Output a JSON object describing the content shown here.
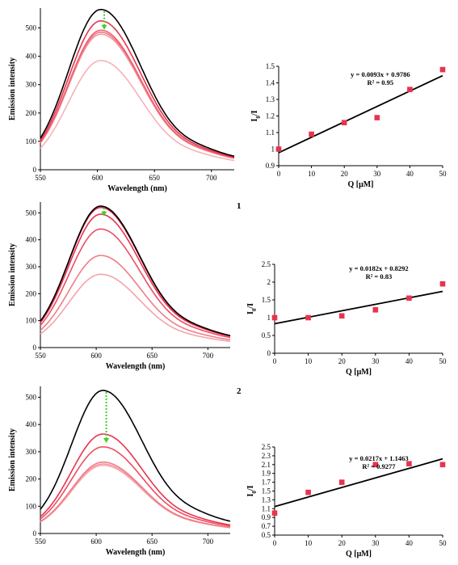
{
  "chart_data": [
    {
      "type": "line",
      "xlabel": "Wavelength (nm)",
      "ylabel": "Emission intensity",
      "xlim": [
        550,
        720
      ],
      "ylim": [
        0,
        570
      ],
      "xticks": [
        550,
        600,
        650,
        700
      ],
      "yticks": [
        0,
        100,
        200,
        300,
        400,
        500
      ],
      "peak_x": 603,
      "series": [
        {
          "color": "#000000",
          "peak": 565
        },
        {
          "color": "#e8334f",
          "peak": 525
        },
        {
          "color": "#ef6070",
          "peak": 492
        },
        {
          "color": "#f07c86",
          "peak": 485
        },
        {
          "color": "#f39aa2",
          "peak": 478
        },
        {
          "color": "#f6b2b8",
          "peak": 385
        }
      ],
      "arrow_color": "#3fd12f"
    },
    {
      "type": "scatter",
      "xlabel": "Q [μM]",
      "ylabel": "I0/I",
      "xlim": [
        0,
        50
      ],
      "ylim": [
        0.9,
        1.5
      ],
      "xticks": [
        0,
        10,
        20,
        30,
        40,
        50
      ],
      "yticks": [
        "0.9",
        "1",
        "1.1",
        "1.2",
        "1.3",
        "1.4",
        "1.5"
      ],
      "x": [
        0,
        10,
        20,
        30,
        40,
        50
      ],
      "y": [
        1.0,
        1.09,
        1.16,
        1.19,
        1.36,
        1.48
      ],
      "fit": {
        "slope": 0.0093,
        "intercept": 0.9786
      },
      "equation": "y = 0.0093x + 0.9786",
      "r2": "R² = 0.95",
      "marker_color": "#e8334f"
    },
    {
      "type": "line",
      "panel_label": "1",
      "xlabel": "Wavelength (nm)",
      "ylabel": "Emission intensity",
      "xlim": [
        550,
        720
      ],
      "ylim": [
        0,
        540
      ],
      "xticks": [
        550,
        600,
        650,
        700
      ],
      "yticks": [
        0,
        100,
        200,
        300,
        400,
        500
      ],
      "peak_x": 604,
      "series": [
        {
          "color": "#000000",
          "peak": 525
        },
        {
          "color": "#d92a46",
          "peak": 520
        },
        {
          "color": "#e8334f",
          "peak": 495
        },
        {
          "color": "#ec4e62",
          "peak": 440
        },
        {
          "color": "#f07c86",
          "peak": 342
        },
        {
          "color": "#f4a2aa",
          "peak": 272
        }
      ],
      "arrow_color": "#3fd12f"
    },
    {
      "type": "scatter",
      "xlabel": "Q [μM]",
      "ylabel": "I0/I",
      "xlim": [
        0,
        50
      ],
      "ylim": [
        0,
        2.5
      ],
      "xticks": [
        0,
        10,
        20,
        30,
        40,
        50
      ],
      "yticks": [
        "0",
        "0.5",
        "1",
        "1.5",
        "2",
        "2.5"
      ],
      "x": [
        0,
        10,
        20,
        30,
        40,
        50
      ],
      "y": [
        1.0,
        1.0,
        1.05,
        1.22,
        1.55,
        1.95
      ],
      "fit": {
        "slope": 0.0182,
        "intercept": 0.8292
      },
      "equation": "y = 0.0182x + 0.8292",
      "r2": "R² = 0.83",
      "marker_color": "#e8334f"
    },
    {
      "type": "line",
      "panel_label": "2",
      "xlabel": "Wavelength (nm)",
      "ylabel": "Emission intensity",
      "xlim": [
        550,
        720
      ],
      "ylim": [
        0,
        540
      ],
      "xticks": [
        550,
        600,
        650,
        700
      ],
      "yticks": [
        0,
        100,
        200,
        300,
        400,
        500
      ],
      "peak_x": 606,
      "series": [
        {
          "color": "#000000",
          "peak": 525
        },
        {
          "color": "#e8334f",
          "peak": 365
        },
        {
          "color": "#ec4e62",
          "peak": 318
        },
        {
          "color": "#f07c86",
          "peak": 262
        },
        {
          "color": "#f39aa2",
          "peak": 255
        },
        {
          "color": "#f6b2b8",
          "peak": 250
        }
      ],
      "arrow_color": "#3fd12f"
    },
    {
      "type": "scatter",
      "xlabel": "Q [μM]",
      "ylabel": "I0/I",
      "xlim": [
        0,
        50
      ],
      "ylim": [
        0.5,
        2.5
      ],
      "xticks": [
        0,
        10,
        20,
        30,
        40,
        50
      ],
      "yticks": [
        "0.5",
        "0.7",
        "0.9",
        "1.1",
        "1.3",
        "1.5",
        "1.7",
        "1.9",
        "2.1",
        "2.3",
        "2.5"
      ],
      "x": [
        0,
        10,
        20,
        30,
        40,
        50
      ],
      "y": [
        1.0,
        1.47,
        1.7,
        2.1,
        2.12,
        2.1
      ],
      "fit": {
        "slope": 0.0217,
        "intercept": 1.1463
      },
      "equation": "y = 0.0217x + 1.1463",
      "r2": "R² = 0.9277",
      "marker_color": "#e8334f"
    }
  ]
}
